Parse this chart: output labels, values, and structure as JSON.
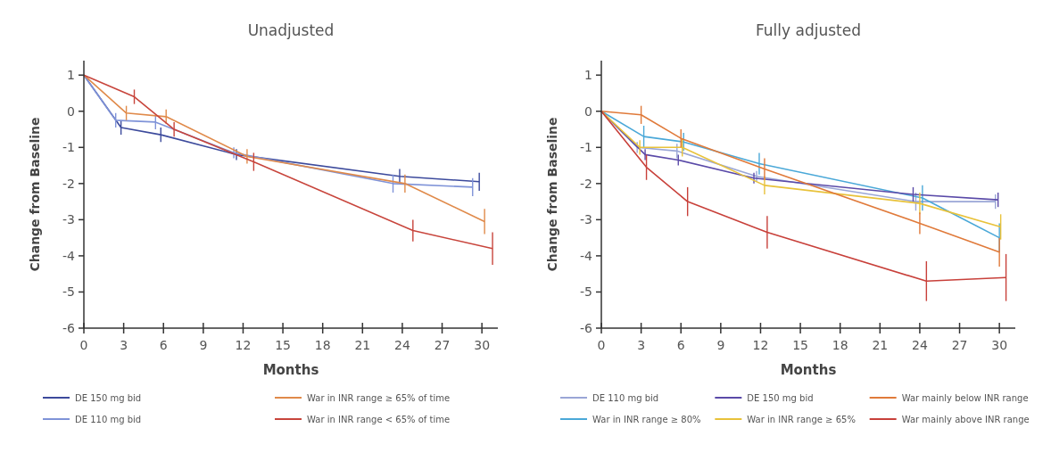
{
  "chart_data": [
    {
      "type": "line",
      "title": "Unadjusted",
      "xlabel": "Months",
      "ylabel": "Change from Baseline",
      "xlim": [
        0,
        31.2
      ],
      "ylim": [
        -6,
        1.4
      ],
      "xticks": [
        0,
        3,
        6,
        9,
        12,
        15,
        18,
        21,
        24,
        27,
        30
      ],
      "yticks": [
        -6,
        -5,
        -4,
        -3,
        -2,
        -1,
        0,
        1
      ],
      "legend": "bottom",
      "series": [
        {
          "name": "DE 150 mg bid",
          "color": "#3c4a9c",
          "x": [
            0,
            2.8,
            5.8,
            11.5,
            23.8,
            29.8
          ],
          "values": [
            1,
            -0.45,
            -0.65,
            -1.2,
            -1.8,
            -1.95
          ],
          "errors": [
            null,
            0.2,
            0.2,
            0.15,
            0.2,
            0.25
          ]
        },
        {
          "name": "DE 110 mg bid",
          "color": "#7f93d8",
          "x": [
            0,
            2.4,
            5.4,
            11.3,
            23.3,
            29.3
          ],
          "values": [
            1,
            -0.25,
            -0.3,
            -1.15,
            -2.0,
            -2.1
          ],
          "errors": [
            null,
            0.2,
            0.2,
            0.15,
            0.25,
            0.25
          ]
        },
        {
          "name": "War in INR range ≥ 65% of time",
          "color": "#e08a4a",
          "x": [
            0,
            3.2,
            6.2,
            12.3,
            24.2,
            30.2
          ],
          "values": [
            1,
            -0.05,
            -0.15,
            -1.25,
            -2.0,
            -3.05
          ],
          "errors": [
            null,
            0.2,
            0.2,
            0.2,
            0.25,
            0.35
          ]
        },
        {
          "name": "War in INR range < 65% of time",
          "color": "#c8453c",
          "x": [
            0,
            3.8,
            6.8,
            12.8,
            24.8,
            30.8
          ],
          "values": [
            1,
            0.4,
            -0.5,
            -1.4,
            -3.3,
            -3.8
          ],
          "errors": [
            null,
            0.2,
            0.2,
            0.25,
            0.3,
            0.45
          ]
        }
      ]
    },
    {
      "type": "line",
      "title": "Fully adjusted",
      "xlabel": "Months",
      "ylabel": "Change from Baseline",
      "xlim": [
        0,
        31.2
      ],
      "ylim": [
        -6,
        1.4
      ],
      "xticks": [
        0,
        3,
        6,
        9,
        12,
        15,
        18,
        21,
        24,
        27,
        30
      ],
      "yticks": [
        -6,
        -5,
        -4,
        -3,
        -2,
        -1,
        0,
        1
      ],
      "legend": "bottom",
      "series": [
        {
          "name": "DE 110 mg bid",
          "color": "#9aa6d6",
          "x": [
            0,
            2.7,
            5.7,
            11.7,
            23.7,
            29.7
          ],
          "values": [
            0,
            -1.0,
            -1.1,
            -1.8,
            -2.5,
            -2.5
          ],
          "errors": [
            null,
            0.15,
            0.2,
            0.15,
            0.25,
            0.2
          ]
        },
        {
          "name": "War in INR range ≥ 80%",
          "color": "#4aa8d8",
          "x": [
            0,
            3.2,
            6.2,
            11.9,
            24.2,
            30
          ],
          "values": [
            0,
            -0.7,
            -0.85,
            -1.45,
            -2.4,
            -3.5
          ],
          "errors": [
            null,
            0.3,
            0.25,
            0.3,
            0.35,
            0.4
          ]
        },
        {
          "name": "DE 150 mg bid",
          "color": "#5a4aa8",
          "x": [
            0,
            3.3,
            5.8,
            11.5,
            23.5,
            29.9
          ],
          "values": [
            0,
            -1.2,
            -1.35,
            -1.85,
            -2.3,
            -2.45
          ],
          "errors": [
            null,
            0.15,
            0.15,
            0.15,
            0.2,
            0.2
          ]
        },
        {
          "name": "War in INR range ≥ 65%",
          "color": "#e8c23a",
          "x": [
            0,
            2.9,
            6.1,
            12.3,
            24.0,
            30.1
          ],
          "values": [
            0,
            -1.0,
            -1.0,
            -2.05,
            -2.55,
            -3.2
          ],
          "errors": [
            null,
            0.2,
            0.25,
            0.25,
            0.3,
            0.35
          ]
        },
        {
          "name": "War mainly below INR range",
          "color": "#e07a3a",
          "x": [
            0,
            3,
            6,
            12.3,
            24,
            30
          ],
          "values": [
            0,
            -0.1,
            -0.75,
            -1.6,
            -3.1,
            -3.9
          ],
          "errors": [
            null,
            0.25,
            0.25,
            0.3,
            0.3,
            0.4
          ]
        },
        {
          "name": "War mainly above INR range",
          "color": "#c8403a",
          "x": [
            0,
            3.4,
            6.5,
            12.5,
            24.5,
            30.5
          ],
          "values": [
            0,
            -1.55,
            -2.5,
            -3.35,
            -4.7,
            -4.6
          ],
          "errors": [
            null,
            0.35,
            0.4,
            0.45,
            0.55,
            0.65
          ]
        }
      ]
    }
  ]
}
